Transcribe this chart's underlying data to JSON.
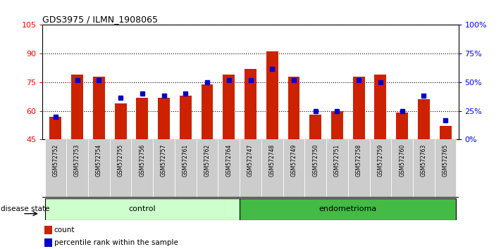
{
  "title": "GDS3975 / ILMN_1908065",
  "samples": [
    "GSM572752",
    "GSM572753",
    "GSM572754",
    "GSM572755",
    "GSM572756",
    "GSM572757",
    "GSM572761",
    "GSM572762",
    "GSM572764",
    "GSM572747",
    "GSM572748",
    "GSM572749",
    "GSM572750",
    "GSM572751",
    "GSM572758",
    "GSM572759",
    "GSM572760",
    "GSM572763",
    "GSM572765"
  ],
  "red_values": [
    57,
    79,
    78,
    64,
    67,
    67,
    68,
    74,
    79,
    82,
    91,
    78,
    58,
    60,
    78,
    79,
    59,
    66,
    52
  ],
  "blue_values": [
    57,
    76,
    76,
    67,
    69,
    68,
    69,
    75,
    76,
    76,
    82,
    76,
    60,
    60,
    76,
    75,
    60,
    68,
    55
  ],
  "control_count": 9,
  "endometrioma_count": 10,
  "ylim_left": [
    45,
    105
  ],
  "ylim_right": [
    0,
    100
  ],
  "yticks_left": [
    45,
    60,
    75,
    90,
    105
  ],
  "yticks_right": [
    0,
    25,
    50,
    75,
    100
  ],
  "ytick_labels_right": [
    "0%",
    "25%",
    "50%",
    "75%",
    "100%"
  ],
  "bar_color": "#CC2200",
  "blue_color": "#0000CC",
  "xticklabel_bg": "#CCCCCC",
  "legend_items": [
    "count",
    "percentile rank within the sample"
  ],
  "disease_state_label": "disease state",
  "control_label": "control",
  "endometrioma_label": "endometrioma",
  "bar_width": 0.55
}
